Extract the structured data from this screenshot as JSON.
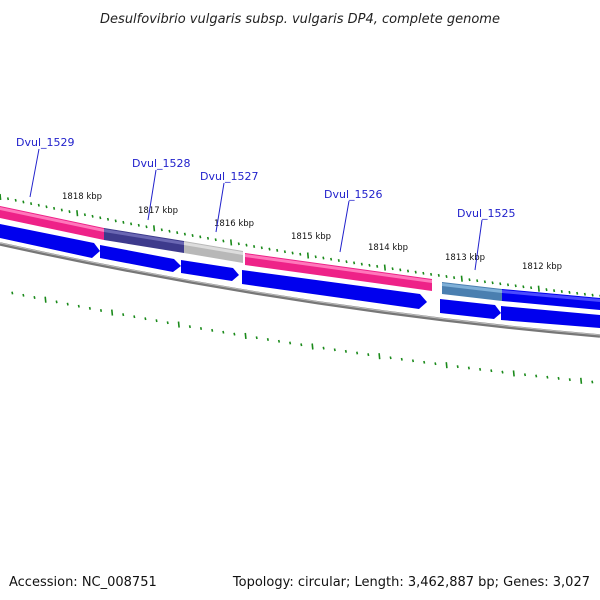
{
  "title": "Desulfovibrio vulgaris subsp. vulgaris DP4, complete genome",
  "footer": {
    "accession": "Accession: NC_008751",
    "summary": "Topology: circular; Length: 3,462,887 bp; Genes: 3,027"
  },
  "colors": {
    "forward_track": "#0000ee",
    "pseudogene_magenta": "#ee2288",
    "gene_navy": "#3d3a8c",
    "gene_gray": "#b8b8b8",
    "gene_steelblue": "#4a7fb0",
    "backbone": "#777777",
    "tick_green": "#1a8a1a",
    "label_blue": "#2222cc"
  },
  "genes": [
    {
      "name": "Dvul_1529",
      "color": "pseudogene_magenta"
    },
    {
      "name": "Dvul_1528",
      "color": "gene_navy"
    },
    {
      "name": "Dvul_1527",
      "color": "gene_gray"
    },
    {
      "name": "Dvul_1526",
      "color": "pseudogene_magenta"
    },
    {
      "name": "Dvul_1525",
      "color": "gene_steelblue"
    }
  ],
  "ticks": [
    "1818 kbp",
    "1817 kbp",
    "1816 kbp",
    "1815 kbp",
    "1814 kbp",
    "1813 kbp",
    "1812 kbp"
  ]
}
